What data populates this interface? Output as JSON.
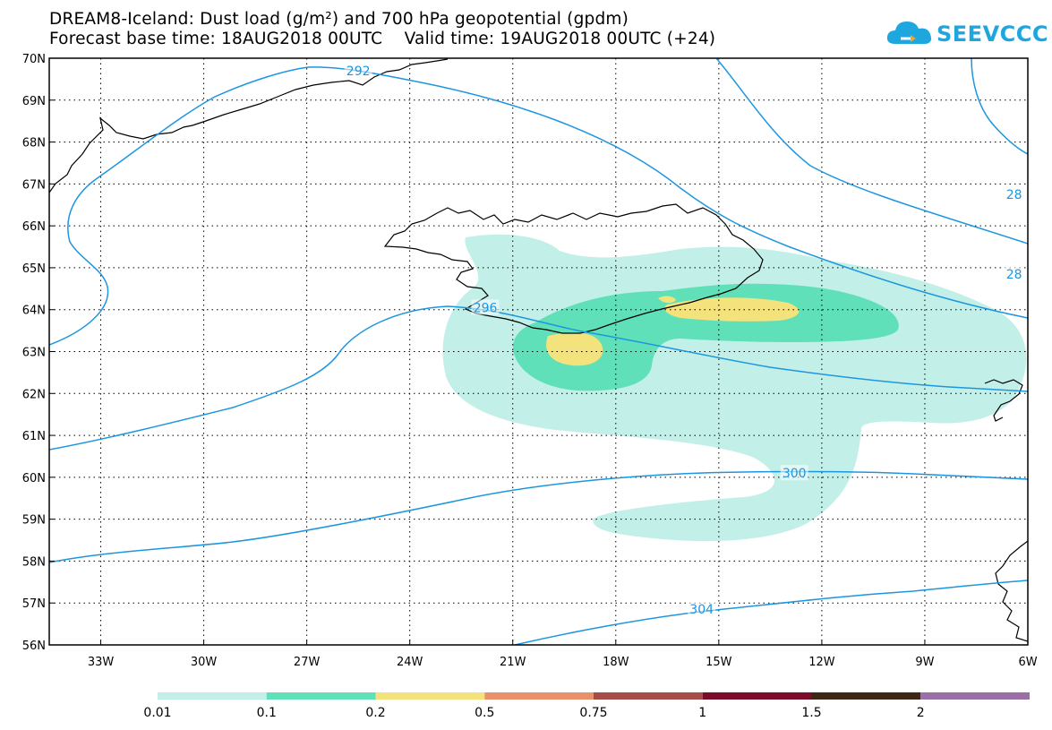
{
  "title": {
    "line1": "DREAM8-Iceland: Dust load (g/m²) and 700 hPa geopotential (gpdm)",
    "line2": "Forecast base time: 18AUG2018 00UTC    Valid time: 19AUG2018 00UTC (+24)"
  },
  "logo": {
    "text": "SEEVCCC",
    "icon": "cloud-logo-icon"
  },
  "map": {
    "lon_range": [
      -34.5,
      -6
    ],
    "lat_range": [
      56,
      70
    ],
    "lon_ticks": [
      {
        "value": -33,
        "label": "33W"
      },
      {
        "value": -30,
        "label": "30W"
      },
      {
        "value": -27,
        "label": "27W"
      },
      {
        "value": -24,
        "label": "24W"
      },
      {
        "value": -21,
        "label": "21W"
      },
      {
        "value": -18,
        "label": "18W"
      },
      {
        "value": -15,
        "label": "15W"
      },
      {
        "value": -12,
        "label": "12W"
      },
      {
        "value": -9,
        "label": "9W"
      },
      {
        "value": -6,
        "label": "6W"
      }
    ],
    "lat_ticks": [
      {
        "value": 70,
        "label": "70N"
      },
      {
        "value": 69,
        "label": "69N"
      },
      {
        "value": 68,
        "label": "68N"
      },
      {
        "value": 67,
        "label": "67N"
      },
      {
        "value": 66,
        "label": "66N"
      },
      {
        "value": 65,
        "label": "65N"
      },
      {
        "value": 64,
        "label": "64N"
      },
      {
        "value": 63,
        "label": "63N"
      },
      {
        "value": 62,
        "label": "62N"
      },
      {
        "value": 61,
        "label": "61N"
      },
      {
        "value": 60,
        "label": "60N"
      },
      {
        "value": 59,
        "label": "59N"
      },
      {
        "value": 58,
        "label": "58N"
      },
      {
        "value": 57,
        "label": "57N"
      },
      {
        "value": 56,
        "label": "56N"
      }
    ],
    "gridlines": "dotted",
    "contour_color": "#1d96e0",
    "contour_labels": [
      {
        "text": "292",
        "lon": -25.5,
        "lat": 69.7
      },
      {
        "text": "296",
        "lon": -21.8,
        "lat": 64.05
      },
      {
        "text": "300",
        "lon": -12.8,
        "lat": 60.1
      },
      {
        "text": "304",
        "lon": -15.5,
        "lat": 56.85
      },
      {
        "text": "28",
        "lon": -6.4,
        "lat": 66.75
      },
      {
        "text": "28",
        "lon": -6.4,
        "lat": 64.85
      }
    ]
  },
  "legend": {
    "labels": [
      "0.01",
      "0.1",
      "0.2",
      "0.5",
      "0.75",
      "1",
      "1.5",
      "2"
    ],
    "colors": [
      "#c2f0e8",
      "#5fe0b8",
      "#f4e27c",
      "#e8916a",
      "#a64b46",
      "#7d0c2a",
      "#3c2815",
      "#9b6fa6"
    ]
  }
}
